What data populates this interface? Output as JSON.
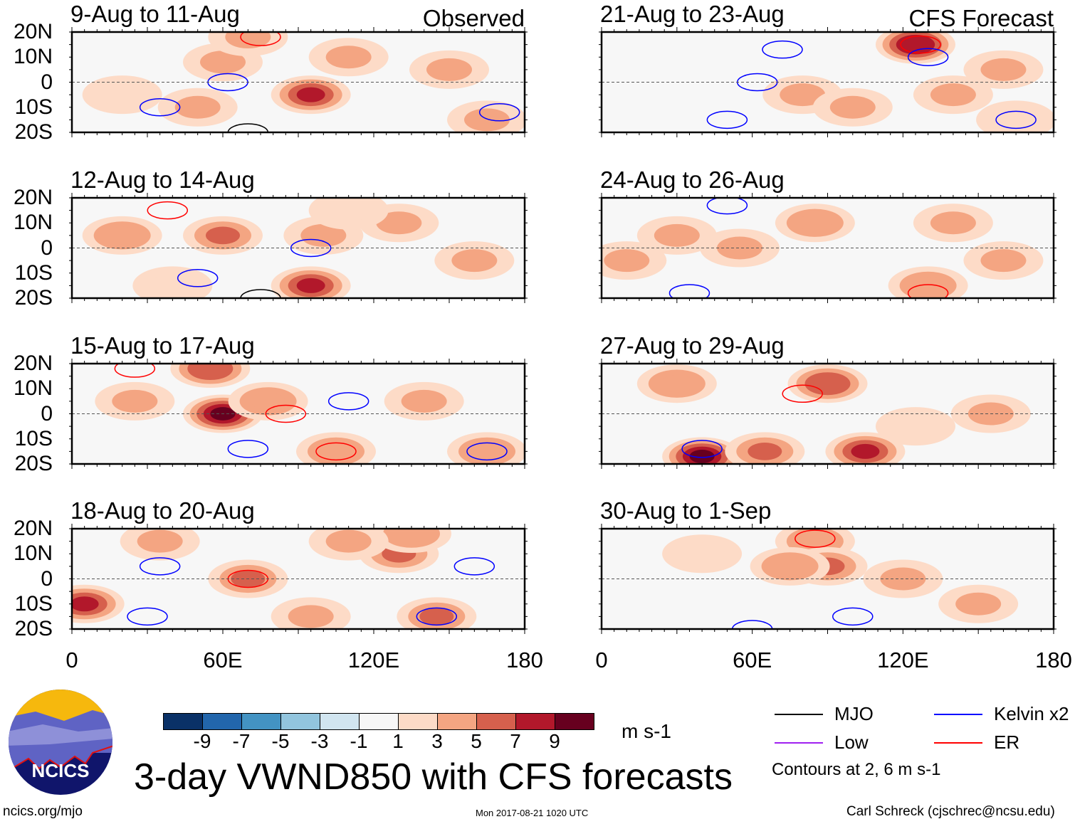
{
  "chart_data": [
    {
      "type": "heatmap",
      "title": "9-Aug to 11-Aug",
      "label": "Observed",
      "features": [
        [
          60,
          8,
          -3
        ],
        [
          95,
          -5,
          -6
        ],
        [
          20,
          -5,
          2
        ],
        [
          50,
          -10,
          3
        ],
        [
          110,
          10,
          -2
        ],
        [
          150,
          5,
          -2
        ],
        [
          70,
          18,
          3
        ],
        [
          165,
          -15,
          -2
        ]
      ],
      "contours": [
        [
          75,
          18,
          "ER"
        ],
        [
          62,
          0,
          "Kelvin"
        ],
        [
          170,
          -12,
          "Kelvin"
        ],
        [
          35,
          -10,
          "Kelvin"
        ],
        [
          70,
          -20,
          "MJO"
        ]
      ]
    },
    {
      "type": "heatmap",
      "title": "12-Aug to 14-Aug",
      "label": "",
      "features": [
        [
          20,
          5,
          4
        ],
        [
          60,
          5,
          -4
        ],
        [
          95,
          -15,
          -6
        ],
        [
          40,
          -15,
          2
        ],
        [
          100,
          5,
          3
        ],
        [
          130,
          10,
          -2
        ],
        [
          160,
          -5,
          -2
        ],
        [
          110,
          15,
          2
        ]
      ],
      "contours": [
        [
          38,
          15,
          "ER"
        ],
        [
          95,
          0,
          "Kelvin"
        ],
        [
          50,
          -12,
          "Kelvin"
        ],
        [
          75,
          -20,
          "MJO"
        ]
      ]
    },
    {
      "type": "heatmap",
      "title": "15-Aug to 17-Aug",
      "label": "",
      "features": [
        [
          60,
          0,
          -9
        ],
        [
          78,
          5,
          4
        ],
        [
          105,
          -15,
          4
        ],
        [
          25,
          5,
          3
        ],
        [
          140,
          5,
          -2
        ],
        [
          165,
          -15,
          4
        ],
        [
          55,
          18,
          6
        ]
      ],
      "contours": [
        [
          25,
          18,
          "ER"
        ],
        [
          85,
          0,
          "ER"
        ],
        [
          105,
          -15,
          "ER"
        ],
        [
          70,
          -14,
          "Kelvin"
        ],
        [
          165,
          -15,
          "Kelvin"
        ],
        [
          110,
          5,
          "Kelvin"
        ]
      ]
    },
    {
      "type": "heatmap",
      "title": "18-Aug to 20-Aug",
      "label": "",
      "features": [
        [
          5,
          -10,
          -7
        ],
        [
          70,
          0,
          5
        ],
        [
          145,
          -15,
          5
        ],
        [
          95,
          -15,
          -3
        ],
        [
          130,
          10,
          -4
        ],
        [
          135,
          18,
          4
        ],
        [
          35,
          15,
          -2
        ],
        [
          110,
          15,
          3
        ]
      ],
      "contours": [
        [
          70,
          0,
          "ER"
        ],
        [
          160,
          5,
          "Kelvin"
        ],
        [
          30,
          -15,
          "Kelvin"
        ],
        [
          145,
          -15,
          "Kelvin"
        ],
        [
          35,
          5,
          "Kelvin"
        ]
      ]
    }
  ],
  "right_panels": [
    {
      "type": "heatmap",
      "title": "21-Aug to 23-Aug",
      "label": "CFS Forecast",
      "features": [
        [
          125,
          15,
          8
        ],
        [
          140,
          -5,
          -3
        ],
        [
          80,
          -5,
          -2
        ],
        [
          160,
          5,
          -2
        ],
        [
          100,
          -10,
          -3
        ],
        [
          165,
          -15,
          2
        ]
      ],
      "contours": [
        [
          127,
          15,
          "ER"
        ],
        [
          130,
          10,
          "Kelvin"
        ],
        [
          62,
          0,
          "Kelvin"
        ],
        [
          72,
          13,
          "Kelvin"
        ],
        [
          165,
          -15,
          "Kelvin"
        ],
        [
          50,
          -15,
          "Kelvin"
        ]
      ]
    },
    {
      "type": "heatmap",
      "title": "24-Aug to 26-Aug",
      "label": "",
      "features": [
        [
          85,
          10,
          4
        ],
        [
          30,
          5,
          3
        ],
        [
          160,
          -5,
          -3
        ],
        [
          130,
          -15,
          4
        ],
        [
          55,
          0,
          -3
        ],
        [
          140,
          10,
          -2
        ],
        [
          10,
          -5,
          -3
        ]
      ],
      "contours": [
        [
          130,
          -18,
          "ER"
        ],
        [
          35,
          -18,
          "Kelvin"
        ],
        [
          50,
          17,
          "Kelvin"
        ]
      ]
    },
    {
      "type": "heatmap",
      "title": "27-Aug to 29-Aug",
      "label": "",
      "features": [
        [
          90,
          12,
          6
        ],
        [
          40,
          -17,
          9
        ],
        [
          30,
          12,
          4
        ],
        [
          105,
          -15,
          -6
        ],
        [
          65,
          -15,
          -5
        ],
        [
          155,
          0,
          -2
        ],
        [
          125,
          -5,
          2
        ]
      ],
      "contours": [
        [
          40,
          -14,
          "Kelvin"
        ],
        [
          80,
          8,
          "ER"
        ]
      ]
    },
    {
      "type": "heatmap",
      "title": "30-Aug to 1-Sep",
      "label": "",
      "features": [
        [
          85,
          15,
          4
        ],
        [
          90,
          5,
          -5
        ],
        [
          75,
          5,
          4
        ],
        [
          120,
          0,
          -2
        ],
        [
          150,
          -10,
          -2
        ],
        [
          40,
          10,
          2
        ]
      ],
      "contours": [
        [
          85,
          16,
          "ER"
        ],
        [
          100,
          -15,
          "Kelvin"
        ],
        [
          60,
          -20,
          "Kelvin"
        ]
      ]
    }
  ],
  "axes": {
    "ylabels": [
      "20N",
      "10N",
      "0",
      "10S",
      "20S"
    ],
    "xlabels": [
      "0",
      "60E",
      "120E",
      "180"
    ],
    "lon_range": [
      0,
      180
    ],
    "lat_range": [
      -20,
      20
    ]
  },
  "colorbar": {
    "labels": [
      "-9",
      "-7",
      "-5",
      "-3",
      "-1",
      "1",
      "3",
      "5",
      "7",
      "9"
    ],
    "colors": [
      "#0a3167",
      "#2266ac",
      "#4393c3",
      "#92c5de",
      "#d1e5f0",
      "#f7f7f7",
      "#fddbc7",
      "#f4a582",
      "#d6604d",
      "#b2182b",
      "#67001f"
    ],
    "units": "m s-1"
  },
  "legend": {
    "items": [
      {
        "label": "MJO",
        "color": "#000000"
      },
      {
        "label": "Kelvin x2",
        "color": "#0000ff"
      },
      {
        "label": "Low",
        "color": "#a020f0"
      },
      {
        "label": "ER",
        "color": "#ff0000"
      }
    ],
    "note": "Contours at 2, 6 m s-1"
  },
  "footer": {
    "title": "3-day VWND850 with CFS forecasts",
    "logo": "NCICS",
    "url": "ncics.org/mjo",
    "timestamp": "Mon 2017-08-21 1020 UTC",
    "author": "Carl Schreck (cjschrec@ncsu.edu)"
  }
}
